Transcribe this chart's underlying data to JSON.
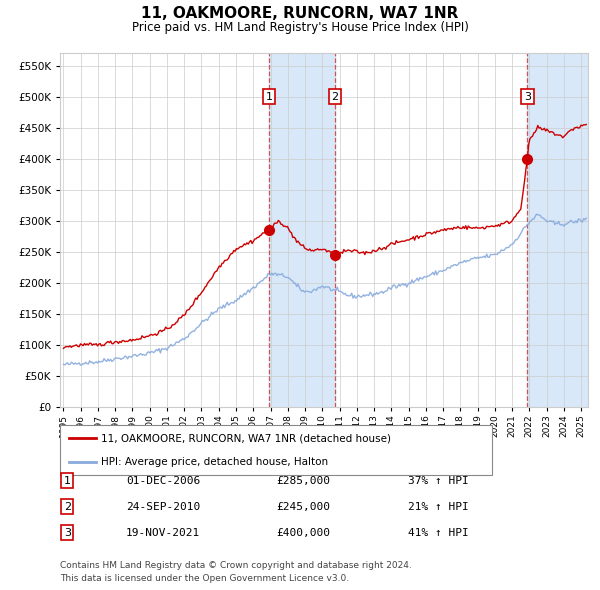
{
  "title": "11, OAKMOORE, RUNCORN, WA7 1NR",
  "subtitle": "Price paid vs. HM Land Registry's House Price Index (HPI)",
  "yticks": [
    0,
    50000,
    100000,
    150000,
    200000,
    250000,
    300000,
    350000,
    400000,
    450000,
    500000,
    550000
  ],
  "ylim": [
    0,
    570000
  ],
  "xlim_start": 1994.8,
  "xlim_end": 2025.4,
  "grid_color": "#cccccc",
  "background_color": "#ffffff",
  "sale_marker_color": "#cc0000",
  "hpi_line_color": "#88aadd",
  "sale_line_color": "#cc0000",
  "sale_events": [
    {
      "label": "1",
      "date_num": 2006.92,
      "price": 285000,
      "date_str": "01-DEC-2006",
      "price_str": "£285,000",
      "hpi_str": "37% ↑ HPI"
    },
    {
      "label": "2",
      "date_num": 2010.73,
      "price": 245000,
      "date_str": "24-SEP-2010",
      "price_str": "£245,000",
      "hpi_str": "21% ↑ HPI"
    },
    {
      "label": "3",
      "date_num": 2021.89,
      "price": 400000,
      "date_str": "19-NOV-2021",
      "price_str": "£400,000",
      "hpi_str": "41% ↑ HPI"
    }
  ],
  "legend_entries": [
    {
      "label": "11, OAKMOORE, RUNCORN, WA7 1NR (detached house)",
      "color": "#cc0000"
    },
    {
      "label": "HPI: Average price, detached house, Halton",
      "color": "#88aadd"
    }
  ],
  "footer_lines": [
    "Contains HM Land Registry data © Crown copyright and database right 2024.",
    "This data is licensed under the Open Government Licence v3.0."
  ],
  "shaded_regions": [
    {
      "start": 2006.92,
      "end": 2010.73
    },
    {
      "start": 2021.89,
      "end": 2025.4
    }
  ],
  "hpi_anchors": [
    [
      1995.0,
      68000
    ],
    [
      1996.0,
      71000
    ],
    [
      1997.0,
      73000
    ],
    [
      1998.0,
      78000
    ],
    [
      1999.0,
      82000
    ],
    [
      2000.0,
      87000
    ],
    [
      2001.0,
      95000
    ],
    [
      2002.0,
      110000
    ],
    [
      2003.0,
      135000
    ],
    [
      2004.0,
      158000
    ],
    [
      2005.0,
      172000
    ],
    [
      2006.0,
      192000
    ],
    [
      2007.0,
      215000
    ],
    [
      2008.0,
      210000
    ],
    [
      2008.5,
      195000
    ],
    [
      2009.0,
      185000
    ],
    [
      2009.5,
      188000
    ],
    [
      2010.0,
      195000
    ],
    [
      2010.5,
      190000
    ],
    [
      2011.0,
      185000
    ],
    [
      2011.5,
      180000
    ],
    [
      2012.0,
      178000
    ],
    [
      2012.5,
      180000
    ],
    [
      2013.0,
      182000
    ],
    [
      2013.5,
      185000
    ],
    [
      2014.0,
      192000
    ],
    [
      2015.0,
      200000
    ],
    [
      2016.0,
      210000
    ],
    [
      2017.0,
      220000
    ],
    [
      2018.0,
      232000
    ],
    [
      2019.0,
      240000
    ],
    [
      2020.0,
      245000
    ],
    [
      2021.0,
      262000
    ],
    [
      2022.0,
      298000
    ],
    [
      2022.5,
      310000
    ],
    [
      2023.0,
      300000
    ],
    [
      2023.5,
      295000
    ],
    [
      2024.0,
      295000
    ],
    [
      2024.5,
      298000
    ],
    [
      2025.3,
      302000
    ]
  ],
  "sold_anchors": [
    [
      1995.0,
      97000
    ],
    [
      1995.5,
      98000
    ],
    [
      1996.0,
      100000
    ],
    [
      1997.0,
      100000
    ],
    [
      1997.5,
      103000
    ],
    [
      1998.0,
      105000
    ],
    [
      1999.0,
      108000
    ],
    [
      2000.0,
      115000
    ],
    [
      2001.0,
      125000
    ],
    [
      2002.0,
      148000
    ],
    [
      2003.0,
      185000
    ],
    [
      2004.0,
      225000
    ],
    [
      2005.0,
      255000
    ],
    [
      2006.0,
      268000
    ],
    [
      2006.5,
      278000
    ],
    [
      2006.92,
      285000
    ],
    [
      2007.5,
      300000
    ],
    [
      2008.0,
      288000
    ],
    [
      2008.5,
      268000
    ],
    [
      2009.0,
      255000
    ],
    [
      2009.5,
      252000
    ],
    [
      2010.0,
      255000
    ],
    [
      2010.73,
      245000
    ],
    [
      2011.0,
      248000
    ],
    [
      2011.5,
      252000
    ],
    [
      2012.0,
      250000
    ],
    [
      2012.5,
      248000
    ],
    [
      2013.0,
      252000
    ],
    [
      2013.5,
      256000
    ],
    [
      2014.0,
      262000
    ],
    [
      2015.0,
      270000
    ],
    [
      2016.0,
      278000
    ],
    [
      2017.0,
      285000
    ],
    [
      2018.0,
      290000
    ],
    [
      2019.0,
      288000
    ],
    [
      2019.5,
      290000
    ],
    [
      2020.0,
      292000
    ],
    [
      2020.5,
      295000
    ],
    [
      2021.0,
      300000
    ],
    [
      2021.5,
      320000
    ],
    [
      2021.89,
      400000
    ],
    [
      2022.0,
      430000
    ],
    [
      2022.5,
      450000
    ],
    [
      2023.0,
      445000
    ],
    [
      2023.5,
      440000
    ],
    [
      2024.0,
      435000
    ],
    [
      2024.5,
      448000
    ],
    [
      2025.3,
      455000
    ]
  ]
}
